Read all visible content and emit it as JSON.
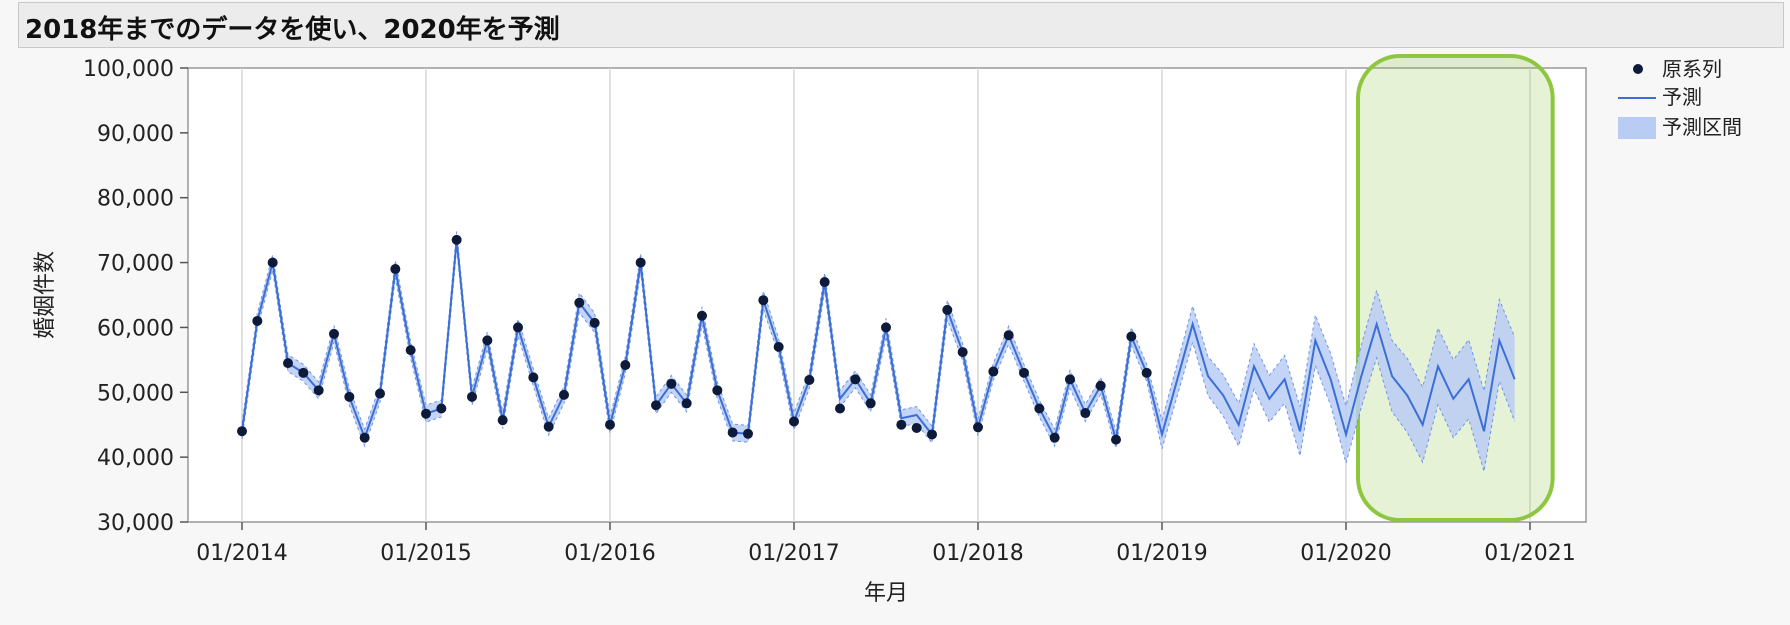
{
  "title": "2018年までのデータを使い、2020年を予測",
  "chart_data": {
    "type": "line",
    "xlabel": "年月",
    "ylabel": "婚姻件数",
    "ylim": [
      30000,
      100000
    ],
    "yticks": [
      "30,000",
      "40,000",
      "50,000",
      "60,000",
      "70,000",
      "80,000",
      "90,000",
      "100,000"
    ],
    "xticks": [
      "01/2014",
      "01/2015",
      "01/2016",
      "01/2017",
      "01/2018",
      "01/2019",
      "01/2020",
      "01/2021"
    ],
    "x_start": "01/2014",
    "grid": true,
    "legend_position": "top-right",
    "highlight": {
      "from": "01/2020",
      "to": "12/2020",
      "color": "#8ec63f"
    },
    "colors": {
      "forecast": "#3c6fd6",
      "band": "#b9ccf4",
      "band_edge": "#6f94e6",
      "points": "#0d1a3a"
    },
    "series": [
      {
        "name": "原系列",
        "kind": "points",
        "values": [
          44000,
          61000,
          70000,
          54500,
          53000,
          50300,
          59000,
          49300,
          43000,
          49800,
          69000,
          56500,
          46700,
          47500,
          73500,
          49300,
          58000,
          45700,
          60000,
          52300,
          44700,
          49600,
          63800,
          60700,
          45000,
          54200,
          70000,
          48000,
          51300,
          48300,
          61800,
          50300,
          43800,
          43600,
          64200,
          57000,
          45500,
          51900,
          67000,
          47500,
          52000,
          48300,
          60000,
          45000,
          44500,
          43500,
          62700,
          56200,
          44600,
          53200,
          58800,
          53000,
          47500,
          43000,
          52000,
          46800,
          51000,
          42700,
          58600,
          53000
        ]
      },
      {
        "name": "予測",
        "kind": "line",
        "values": [
          44000,
          61000,
          70000,
          54500,
          53000,
          50300,
          59000,
          49300,
          43000,
          49800,
          69000,
          56500,
          46700,
          47500,
          73500,
          49300,
          58000,
          45700,
          60000,
          52300,
          44700,
          49600,
          63800,
          60700,
          45000,
          54200,
          70000,
          48000,
          51300,
          48300,
          61800,
          50300,
          43800,
          43600,
          64200,
          57000,
          45500,
          51900,
          67000,
          49000,
          52000,
          48300,
          60000,
          46000,
          46500,
          43500,
          62700,
          56200,
          44600,
          53200,
          58800,
          53000,
          47500,
          43000,
          52000,
          46800,
          51000,
          42700,
          58600,
          53000,
          43500,
          52000,
          60500,
          52500,
          49500,
          45000,
          54000,
          49000,
          52000,
          44000,
          58000,
          52000,
          43500,
          52500,
          60500,
          52500,
          49500,
          45000,
          54000,
          49000,
          52000,
          44000,
          58000,
          52000
        ]
      },
      {
        "name": "予測区間",
        "kind": "band",
        "halfwidth": [
          1200,
          1200,
          1200,
          1300,
          1300,
          1300,
          1300,
          1300,
          1300,
          1300,
          1300,
          1300,
          1300,
          1300,
          1300,
          1300,
          1300,
          1300,
          1300,
          1300,
          1300,
          1300,
          1500,
          1500,
          1300,
          1300,
          1400,
          1300,
          1300,
          1300,
          1400,
          1300,
          1300,
          1300,
          1400,
          1300,
          1300,
          1300,
          1400,
          1300,
          1300,
          1300,
          1400,
          1300,
          1300,
          1300,
          1500,
          1300,
          1300,
          1300,
          1400,
          1300,
          1300,
          1300,
          1400,
          1300,
          1300,
          1300,
          1400,
          1300,
          2200,
          2500,
          2800,
          3000,
          3200,
          3300,
          3500,
          3600,
          3700,
          3800,
          3900,
          4000,
          4400,
          4800,
          5200,
          5500,
          5700,
          5800,
          5900,
          6000,
          6100,
          6200,
          6300,
          6500
        ]
      }
    ]
  }
}
